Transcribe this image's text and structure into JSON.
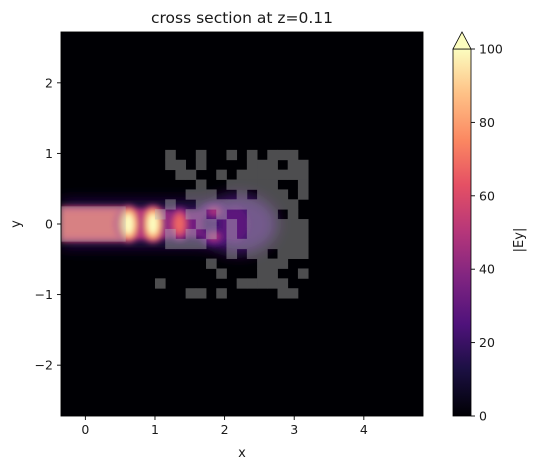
{
  "chart_data": {
    "type": "heatmap",
    "title": "cross section at z=0.11",
    "xlabel": "x",
    "ylabel": "y",
    "xlim": [
      -0.35,
      4.85
    ],
    "ylim": [
      -2.72,
      2.72
    ],
    "xticks": [
      0,
      1,
      2,
      3,
      4
    ],
    "yticks": [
      -2,
      -1,
      0,
      1,
      2
    ],
    "colorbar": {
      "label": "|Ey|",
      "colormap": "magma",
      "vmin": 0,
      "vmax": 100,
      "ticks": [
        0,
        20,
        40,
        60,
        80,
        100
      ],
      "extend": "max"
    },
    "waveguide": {
      "x_start": -0.35,
      "x_end": 0.58,
      "y_half_width": 0.25
    },
    "design_region": {
      "x_start": 1.0,
      "x_end": 3.2,
      "y_min": -1.05,
      "y_max": 1.05
    },
    "field_hotspots": [
      {
        "x": 0.62,
        "y": 0.0,
        "value": 100
      },
      {
        "x": 0.97,
        "y": 0.0,
        "value": 100
      },
      {
        "x": 1.35,
        "y": 0.0,
        "value": 68
      },
      {
        "x": 1.85,
        "y": 0.18,
        "value": 48
      },
      {
        "x": 1.85,
        "y": -0.18,
        "value": 48
      }
    ],
    "input_mode_peak": 58
  }
}
